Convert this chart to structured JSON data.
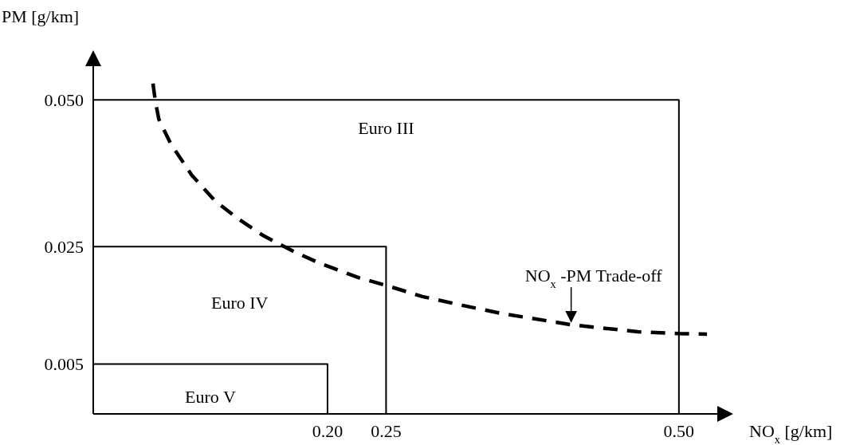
{
  "chart_data": {
    "type": "line",
    "xlabel": "NO$_{x}$ [g/km]",
    "ylabel": "PM [g/km]",
    "xlim": [
      0,
      0.545
    ],
    "ylim": [
      -0.0035,
      0.0582
    ],
    "xticks": [
      {
        "value": 0.2,
        "label": "0.20"
      },
      {
        "value": 0.25,
        "label": "0.25"
      },
      {
        "value": 0.5,
        "label": "0.50"
      }
    ],
    "yticks": [
      {
        "value": 0.005,
        "label": "0.005"
      },
      {
        "value": 0.025,
        "label": "0.025"
      },
      {
        "value": 0.05,
        "label": "0.050"
      }
    ],
    "grid": false,
    "marker": "none",
    "series": [
      {
        "name": "Euro III",
        "color": "#000000",
        "line_style": "solid",
        "x": [
          0,
          0.5,
          0.5
        ],
        "values": [
          0.05,
          0.05,
          -0.0035
        ]
      },
      {
        "name": "Euro IV",
        "color": "#000000",
        "line_style": "solid",
        "x": [
          0,
          0.25,
          0.25
        ],
        "values": [
          0.025,
          0.025,
          -0.0035
        ]
      },
      {
        "name": "Euro V",
        "color": "#000000",
        "line_style": "solid",
        "x": [
          0,
          0.2,
          0.2
        ],
        "values": [
          0.005,
          0.005,
          -0.0035
        ]
      },
      {
        "color": "#000000",
        "line_style": "dashed",
        "x": [
          0.051,
          0.053,
          0.056,
          0.066,
          0.084,
          0.104,
          0.124,
          0.145,
          0.171,
          0.193,
          0.227,
          0.25,
          0.281,
          0.315,
          0.349,
          0.408,
          0.465,
          0.499,
          0.524
        ],
        "values": [
          0.0528,
          0.0498,
          0.0467,
          0.0426,
          0.0372,
          0.0328,
          0.0297,
          0.0269,
          0.0242,
          0.0222,
          0.0197,
          0.0184,
          0.0165,
          0.015,
          0.0136,
          0.0117,
          0.0105,
          0.0102,
          0.0101
        ]
      }
    ],
    "annotations": [
      {
        "text": "NO$_{x}$ -PM Trade-off",
        "x": 0.408,
        "y": 0.0117
      }
    ]
  }
}
